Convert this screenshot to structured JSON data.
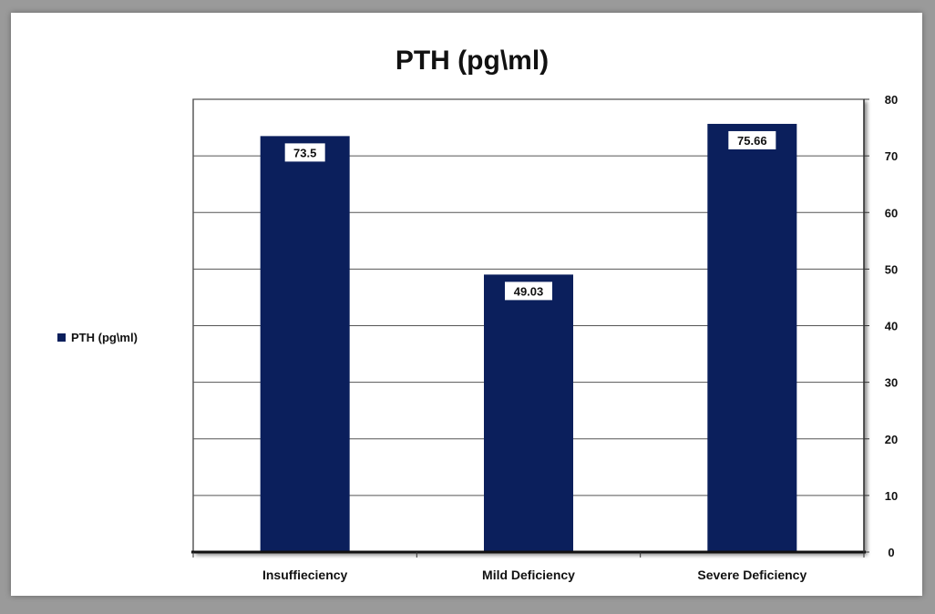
{
  "chart_data": {
    "type": "bar",
    "title": "PTH (pg\\ml)",
    "categories": [
      "Insuffieciency",
      "Mild Deficiency",
      "Severe Deficiency"
    ],
    "series": [
      {
        "name": "PTH (pg\\ml)",
        "values": [
          73.5,
          49.03,
          75.66
        ]
      }
    ],
    "data_labels": [
      "73.5",
      "49.03",
      "75.66"
    ],
    "ylim": [
      0,
      80
    ],
    "yticks": [
      0,
      10,
      20,
      30,
      40,
      50,
      60,
      70,
      80
    ],
    "yaxis_side": "right",
    "grid": true,
    "legend_position": "left",
    "bar_color": "#0b1f5c"
  }
}
